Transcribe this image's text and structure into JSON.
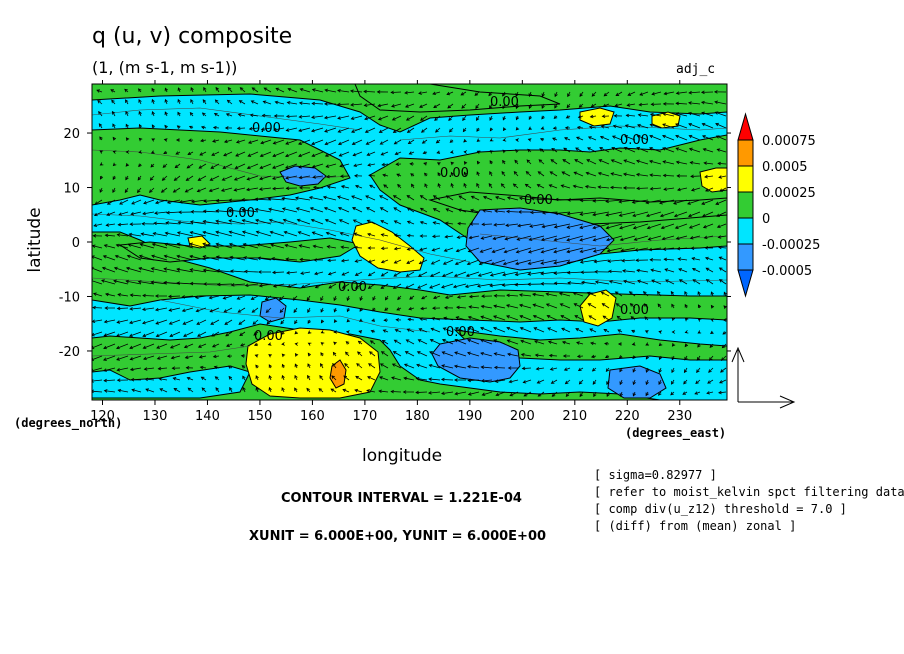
{
  "header": {
    "title": "q (u, v) composite",
    "subtitle": "(1, (m s-1, m s-1))",
    "tag": "adj_c"
  },
  "axes": {
    "xlabel": "longitude",
    "ylabel": "latitude",
    "x_unit": "(degrees_east)",
    "y_unit": "(degrees_north)"
  },
  "info": {
    "contour_interval": "CONTOUR INTERVAL = 1.221E-04",
    "vector_units": "XUNIT = 6.000E+00, YUNIT = 6.000E+00"
  },
  "notes": [
    "[ sigma=0.82977 ]",
    "[ refer to moist_kelvin spct filtering data ]",
    "[ comp div(u_z12) threshold = 7.0 ]",
    "[ (diff) from (mean) zonal ]"
  ],
  "chart_data": {
    "type": "heatmap",
    "title": "q (u, v) composite",
    "subtitle": "(1, (m s-1, m s-1))",
    "xlabel": "longitude",
    "ylabel": "latitude",
    "xlim": [
      118,
      239
    ],
    "ylim": [
      -29,
      29
    ],
    "xticks": [
      120,
      130,
      140,
      150,
      160,
      170,
      180,
      190,
      200,
      210,
      220,
      230
    ],
    "yticks": [
      20,
      10,
      0,
      -10,
      -20
    ],
    "contour_labels": [
      "0.00",
      "0.00",
      "0.00",
      "0.00",
      "0.00",
      "0.00",
      "0.00",
      "0.00",
      "0.00",
      "0.00"
    ],
    "colorbar": {
      "labels": [
        "0.00075",
        "0.0005",
        "0.00025",
        "0",
        "-0.00025",
        "-0.0005"
      ],
      "colors": [
        "#ff0000",
        "#ff9900",
        "#ffff00",
        "#33cc33",
        "#00e5ff",
        "#3399ff",
        "#0066ff"
      ]
    },
    "colors": {
      "strong_pos": "#ff9900",
      "pos": "#ffff00",
      "zero": "#33cc33",
      "neg": "#00e5ff",
      "strong_neg": "#3399ff"
    },
    "vectors": "wind vectors (u, v) overlaid on shading, scale XUNIT = YUNIT = 6"
  }
}
